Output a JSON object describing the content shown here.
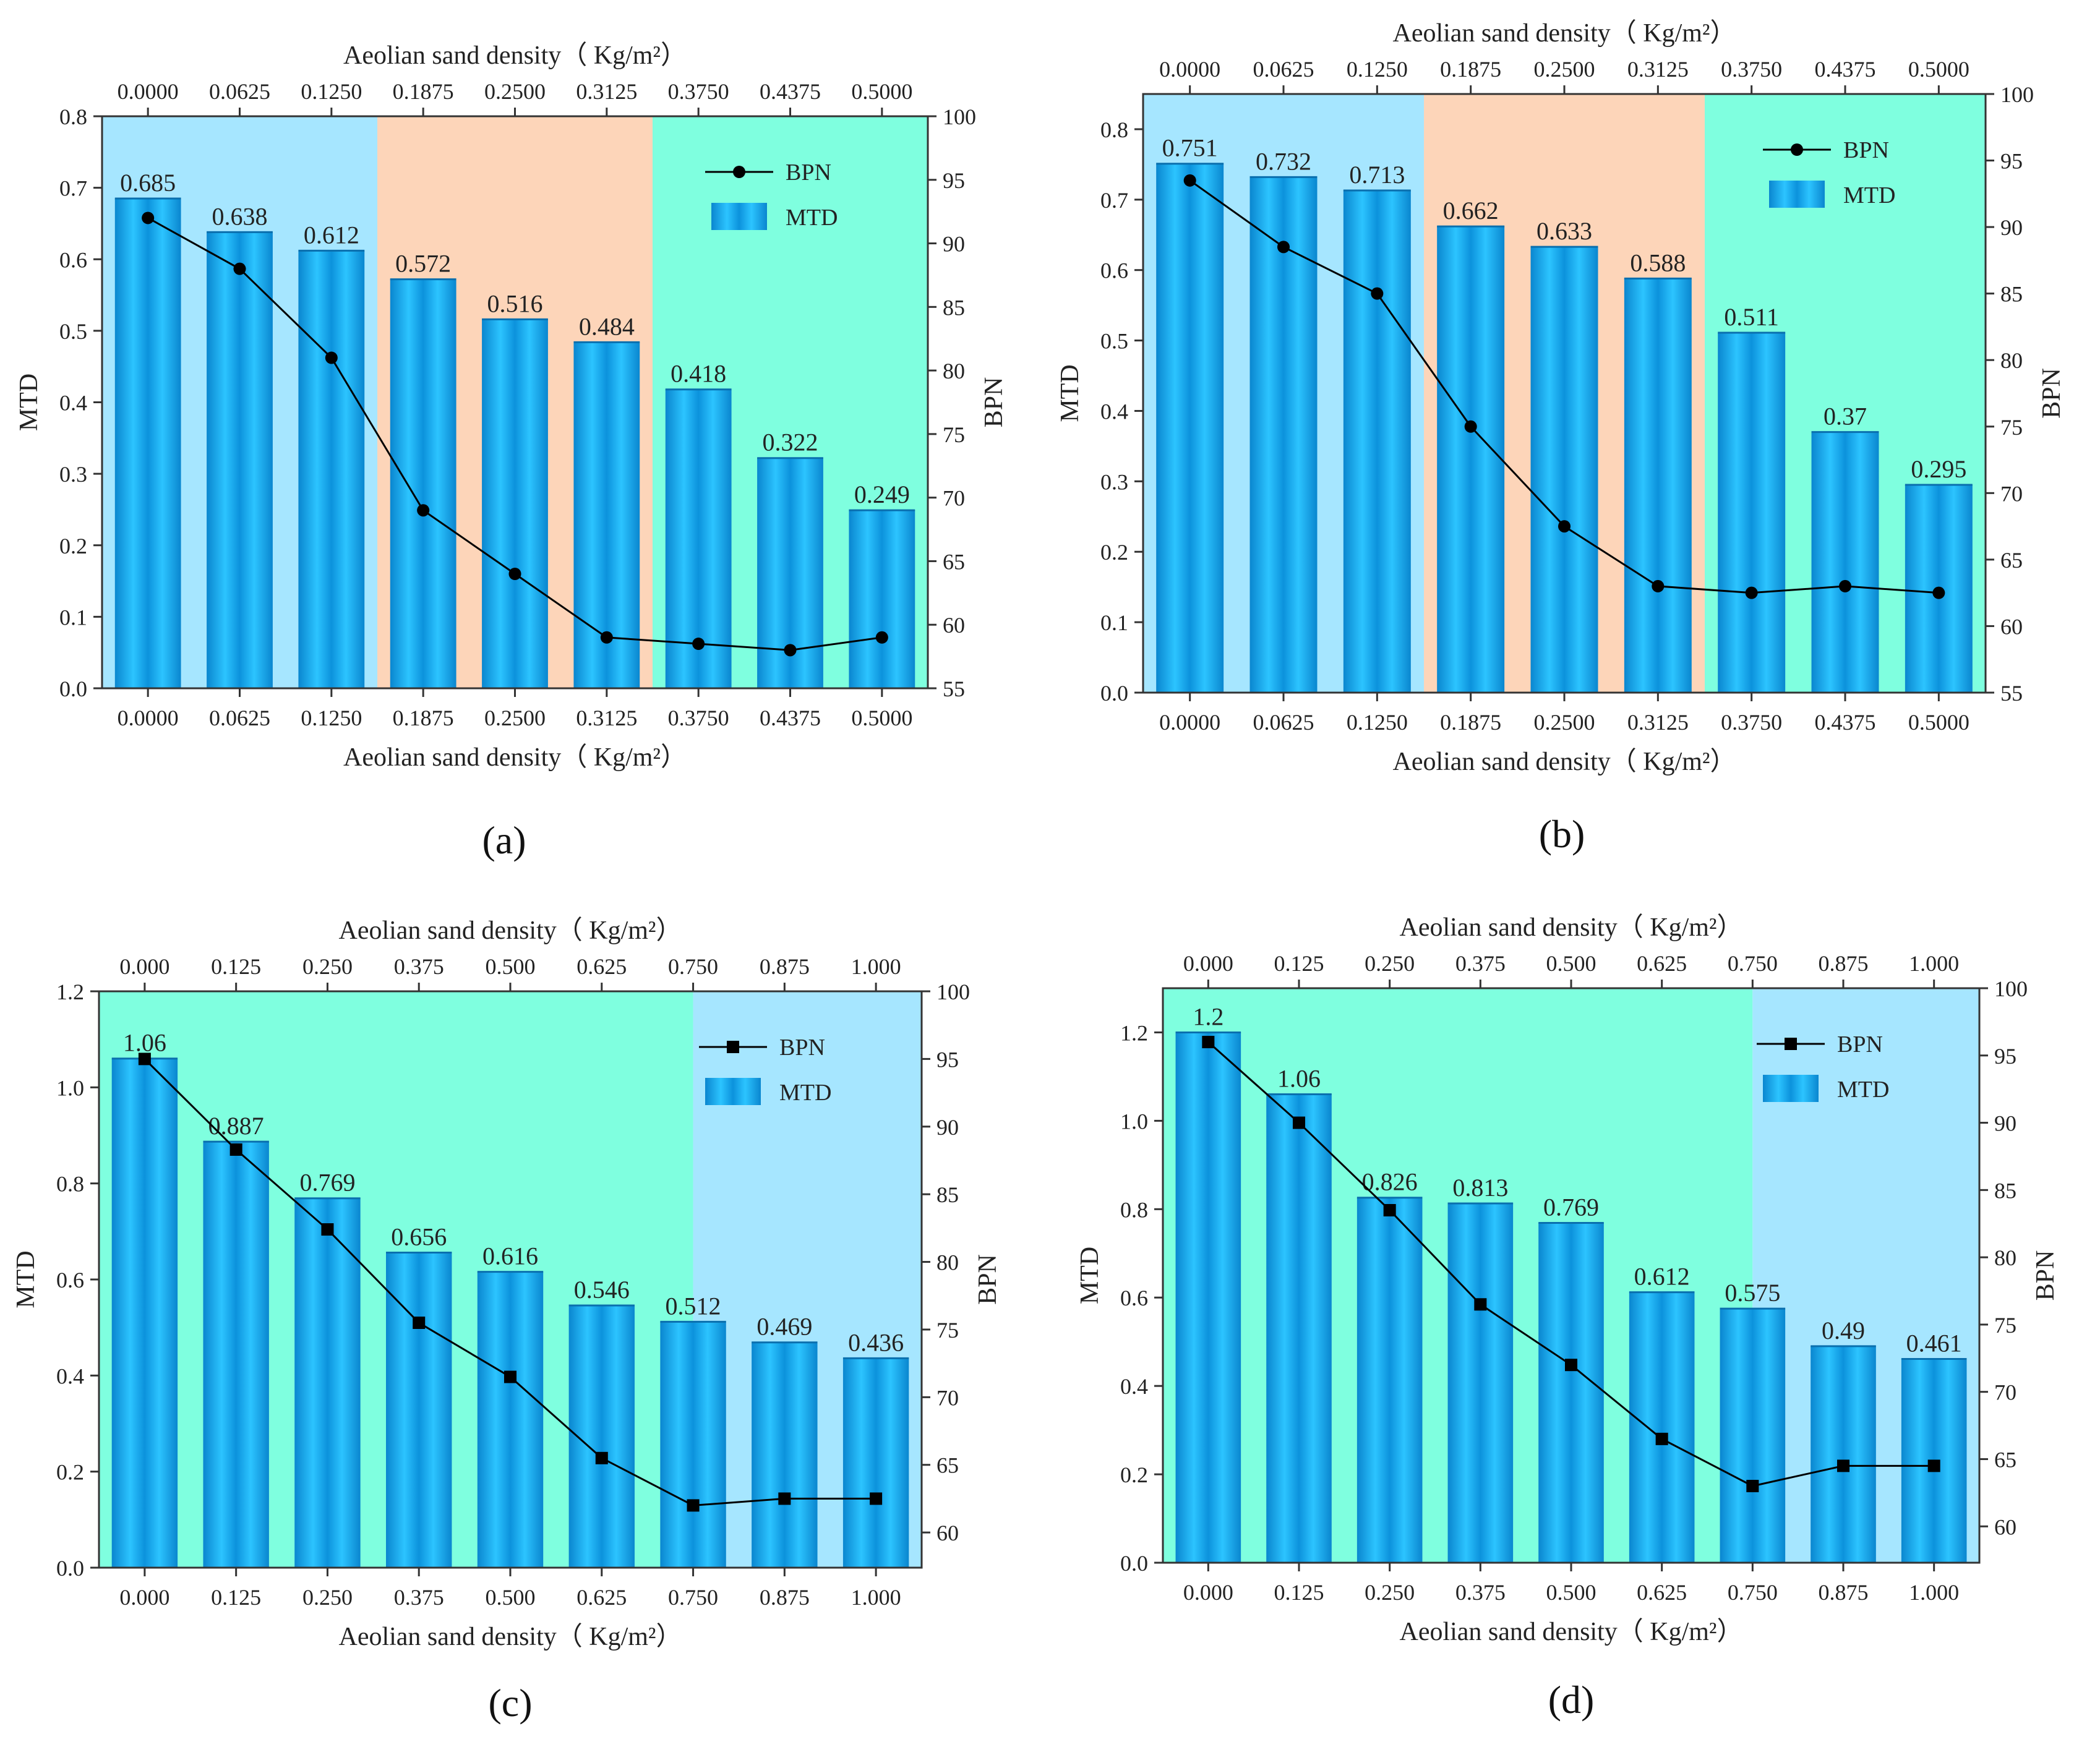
{
  "figure": {
    "panels": [
      "(a)",
      "(b)",
      "(c)",
      "(d)"
    ]
  },
  "colors": {
    "region_blue": "#a6e6ff",
    "region_orange": "#fdd5b9",
    "region_green": "#7fffdf",
    "bar_dark": "#0a8fd8",
    "bar_light": "#3fd0ff",
    "line": "#000000"
  },
  "chart_data": [
    {
      "id": "a",
      "type": "bar+line",
      "panel_label": "(a)",
      "categories": [
        "0.0000",
        "0.0625",
        "0.1250",
        "0.1875",
        "0.2500",
        "0.3125",
        "0.3750",
        "0.4375",
        "0.5000"
      ],
      "top_categories": [
        "0.0000",
        "0.0625",
        "0.1250",
        "0.1875",
        "0.2500",
        "0.3125",
        "0.3750",
        "0.4375",
        "0.5000"
      ],
      "xlabel": "Aeolian sand density（ Kg/m²）",
      "top_xlabel": "Aeolian sand density（ Kg/m²）",
      "ylabel_left": "MTD",
      "ylabel_right": "BPN",
      "ylim_left": [
        0.0,
        0.8
      ],
      "yticks_left": [
        "0.0",
        "0.1",
        "0.2",
        "0.3",
        "0.4",
        "0.5",
        "0.6",
        "0.7",
        "0.8"
      ],
      "ylim_right": [
        55,
        100
      ],
      "yticks_right": [
        "55",
        "60",
        "65",
        "70",
        "75",
        "80",
        "85",
        "90",
        "95",
        "100"
      ],
      "regions": [
        {
          "from_index": 0,
          "to_index": 2.5,
          "color": "region_blue"
        },
        {
          "from_index": 2.5,
          "to_index": 5.5,
          "color": "region_orange"
        },
        {
          "from_index": 5.5,
          "to_index": 8.5,
          "color": "region_green"
        }
      ],
      "series": [
        {
          "name": "MTD",
          "kind": "bar",
          "axis": "left",
          "values": [
            0.685,
            0.638,
            0.612,
            0.572,
            0.516,
            0.484,
            0.418,
            0.322,
            0.249
          ],
          "labels": [
            "0.685",
            "0.638",
            "0.612",
            "0.572",
            "0.516",
            "0.484",
            "0.418",
            "0.322",
            "0.249"
          ]
        },
        {
          "name": "BPN",
          "kind": "line",
          "marker": "circle",
          "axis": "right",
          "values": [
            92,
            88,
            81,
            69,
            64,
            59,
            58.5,
            58,
            59
          ]
        }
      ],
      "legend": [
        "BPN",
        "MTD"
      ],
      "legend_position": "top-right"
    },
    {
      "id": "b",
      "type": "bar+line",
      "panel_label": "(b)",
      "categories": [
        "0.0000",
        "0.0625",
        "0.1250",
        "0.1875",
        "0.2500",
        "0.3125",
        "0.3750",
        "0.4375",
        "0.5000"
      ],
      "top_categories": [
        "0.0000",
        "0.0625",
        "0.1250",
        "0.1875",
        "0.2500",
        "0.3125",
        "0.3750",
        "0.4375",
        "0.5000"
      ],
      "xlabel": "Aeolian sand density（ Kg/m²）",
      "top_xlabel": "Aeolian sand density（ Kg/m²）",
      "ylabel_left": "MTD",
      "ylabel_right": "BPN",
      "ylim_left": [
        0.0,
        0.85
      ],
      "yticks_left": [
        "0.0",
        "0.1",
        "0.2",
        "0.3",
        "0.4",
        "0.5",
        "0.6",
        "0.7",
        "0.8"
      ],
      "ylim_right": [
        55,
        100
      ],
      "yticks_right": [
        "55",
        "60",
        "65",
        "70",
        "75",
        "80",
        "85",
        "90",
        "95",
        "100"
      ],
      "regions": [
        {
          "from_index": 0,
          "to_index": 2.5,
          "color": "region_blue"
        },
        {
          "from_index": 2.5,
          "to_index": 5.5,
          "color": "region_orange"
        },
        {
          "from_index": 5.5,
          "to_index": 8.5,
          "color": "region_green"
        }
      ],
      "series": [
        {
          "name": "MTD",
          "kind": "bar",
          "axis": "left",
          "values": [
            0.751,
            0.732,
            0.713,
            0.662,
            0.633,
            0.588,
            0.511,
            0.37,
            0.295
          ],
          "labels": [
            "0.751",
            "0.732",
            "0.713",
            "0.662",
            "0.633",
            "0.588",
            "0.511",
            "0.37",
            "0.295"
          ]
        },
        {
          "name": "BPN",
          "kind": "line",
          "marker": "circle",
          "axis": "right",
          "values": [
            93.5,
            88.5,
            85,
            75,
            67.5,
            63,
            62.5,
            63,
            62.5
          ]
        }
      ],
      "legend": [
        "BPN",
        "MTD"
      ],
      "legend_position": "top-right"
    },
    {
      "id": "c",
      "type": "bar+line",
      "panel_label": "(c)",
      "categories": [
        "0.000",
        "0.125",
        "0.250",
        "0.375",
        "0.500",
        "0.625",
        "0.750",
        "0.875",
        "1.000"
      ],
      "top_categories": [
        "0.000",
        "0.125",
        "0.250",
        "0.375",
        "0.500",
        "0.625",
        "0.750",
        "0.875",
        "1.000"
      ],
      "xlabel": "Aeolian sand density（ Kg/m²）",
      "top_xlabel": "Aeolian sand density（ Kg/m²）",
      "ylabel_left": "MTD",
      "ylabel_right": "BPN",
      "ylim_left": [
        0.0,
        1.2
      ],
      "yticks_left": [
        "0.0",
        "0.2",
        "0.4",
        "0.6",
        "0.8",
        "1.0",
        "1.2"
      ],
      "ylim_right": [
        57.4,
        100
      ],
      "yticks_right": [
        "60",
        "65",
        "70",
        "75",
        "80",
        "85",
        "90",
        "95",
        "100"
      ],
      "regions": [
        {
          "from_index": -0.5,
          "to_index": 6.0,
          "color": "region_green"
        },
        {
          "from_index": 6.0,
          "to_index": 8.5,
          "color": "region_blue"
        }
      ],
      "series": [
        {
          "name": "MTD",
          "kind": "bar",
          "axis": "left",
          "values": [
            1.06,
            0.887,
            0.769,
            0.656,
            0.616,
            0.546,
            0.512,
            0.469,
            0.436
          ],
          "labels": [
            "1.06",
            "0.887",
            "0.769",
            "0.656",
            "0.616",
            "0.546",
            "0.512",
            "0.469",
            "0.436"
          ]
        },
        {
          "name": "BPN",
          "kind": "line",
          "marker": "square",
          "axis": "right",
          "values": [
            95,
            88.3,
            82.4,
            75.5,
            71.5,
            65.5,
            62,
            62.5,
            62.5
          ]
        }
      ],
      "legend": [
        "BPN",
        "MTD"
      ],
      "legend_position": "top-right"
    },
    {
      "id": "d",
      "type": "bar+line",
      "panel_label": "(d)",
      "categories": [
        "0.000",
        "0.125",
        "0.250",
        "0.375",
        "0.500",
        "0.625",
        "0.750",
        "0.875",
        "1.000"
      ],
      "top_categories": [
        "0.000",
        "0.125",
        "0.250",
        "0.375",
        "0.500",
        "0.625",
        "0.750",
        "0.875",
        "1.000"
      ],
      "xlabel": "Aeolian sand density（ Kg/m²）",
      "top_xlabel": "Aeolian sand density（ Kg/m²）",
      "ylabel_left": "MTD",
      "ylabel_right": "BPN",
      "ylim_left": [
        0.0,
        1.3
      ],
      "yticks_left": [
        "0.0",
        "0.2",
        "0.4",
        "0.6",
        "0.8",
        "1.0",
        "1.2"
      ],
      "ylim_right": [
        57.3,
        100
      ],
      "yticks_right": [
        "60",
        "65",
        "70",
        "75",
        "80",
        "85",
        "90",
        "95",
        "100"
      ],
      "regions": [
        {
          "from_index": -0.5,
          "to_index": 6.0,
          "color": "region_green"
        },
        {
          "from_index": 6.0,
          "to_index": 8.5,
          "color": "region_blue"
        }
      ],
      "series": [
        {
          "name": "MTD",
          "kind": "bar",
          "axis": "left",
          "values": [
            1.2,
            1.06,
            0.826,
            0.813,
            0.769,
            0.612,
            0.575,
            0.49,
            0.461
          ],
          "labels": [
            "1.2",
            "1.06",
            "0.826",
            "0.813",
            "0.769",
            "0.612",
            "0.575",
            "0.49",
            "0.461"
          ]
        },
        {
          "name": "BPN",
          "kind": "line",
          "marker": "square",
          "axis": "right",
          "values": [
            96,
            90,
            83.5,
            76.5,
            72,
            66.5,
            63,
            64.5,
            64.5
          ]
        }
      ],
      "legend": [
        "BPN",
        "MTD"
      ],
      "legend_position": "top-right"
    }
  ]
}
